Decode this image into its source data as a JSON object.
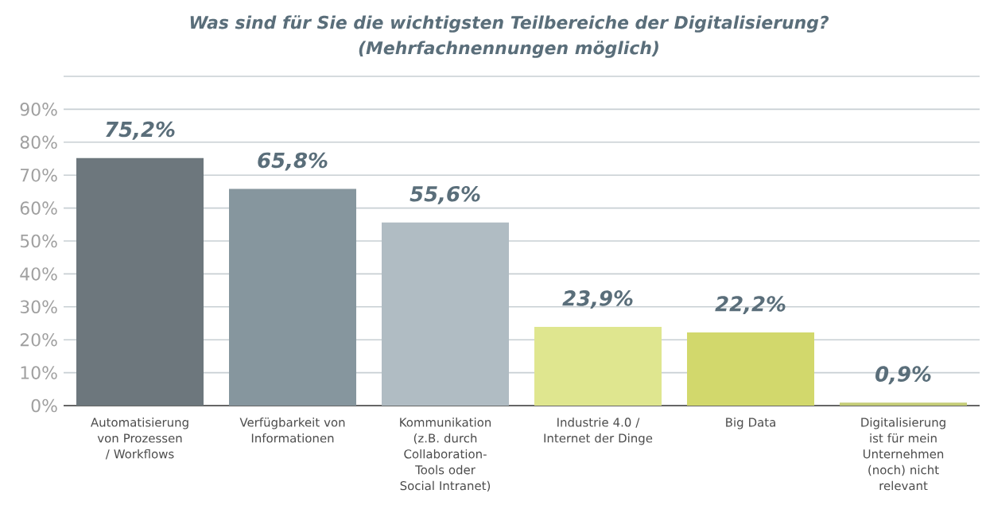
{
  "chart_data": {
    "type": "bar",
    "title": "Was sind für Sie die wichtigsten Teilbereiche der Digitalisierung?",
    "subtitle": "(Mehrfachnennungen möglich)",
    "categories": [
      "Automatisierung von Prozessen / Workflows",
      "Verfügbarkeit von Informationen",
      "Kommunikation (z.B. durch Collaboration-Tools oder Social Intranet)",
      "Industrie 4.0 / Internet der Dinge",
      "Big Data",
      "Digitalisierung ist für mein Unternehmen (noch) nicht relevant"
    ],
    "values": [
      75.2,
      65.8,
      55.6,
      23.9,
      22.2,
      0.9
    ],
    "value_labels": [
      "75,2%",
      "65,8%",
      "55,6%",
      "23,9%",
      "22,2%",
      "0,9%"
    ],
    "colors": [
      "#6d777d",
      "#86969e",
      "#b0bcc3",
      "#dfe68f",
      "#d2d86c",
      "#c5cd77"
    ],
    "ylim": [
      0,
      100
    ],
    "yticks": [
      {
        "value": 0,
        "label": "0%"
      },
      {
        "value": 10,
        "label": "10%"
      },
      {
        "value": 20,
        "label": "20%"
      },
      {
        "value": 30,
        "label": "30%"
      },
      {
        "value": 40,
        "label": "40%"
      },
      {
        "value": 50,
        "label": "50%"
      },
      {
        "value": 60,
        "label": "60%"
      },
      {
        "value": 70,
        "label": "70%"
      },
      {
        "value": 80,
        "label": "80%"
      },
      {
        "value": 90,
        "label": "90%"
      },
      {
        "value": 100,
        "label": null
      }
    ],
    "grid": "y"
  }
}
